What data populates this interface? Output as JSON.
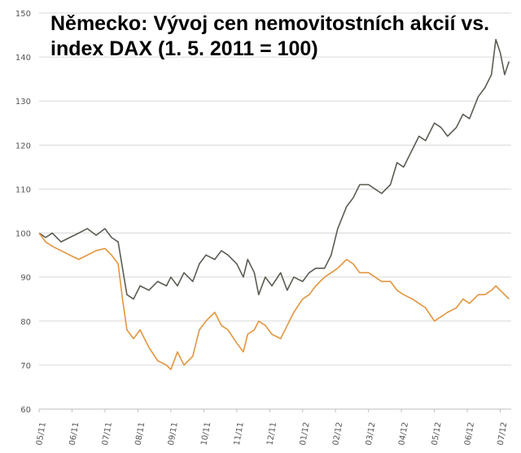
{
  "chart_data": {
    "type": "line",
    "title": "Německo: Vývoj cen nemovitostních akcií vs. index DAX (1. 5. 2011 = 100)",
    "xlabel": "",
    "ylabel": "",
    "ylim": [
      60,
      150
    ],
    "y_ticks": [
      "60",
      "70",
      "80",
      "90",
      "100",
      "110",
      "120",
      "130",
      "140",
      "150"
    ],
    "x_ticks": [
      "05/11",
      "06/11",
      "07/11",
      "08/11",
      "09/11",
      "10/11",
      "11/11",
      "12/11",
      "01/12",
      "02/12",
      "03/12",
      "04/12",
      "05/12",
      "06/12",
      "07/12"
    ],
    "grid": "horizontal",
    "legend": "none",
    "series": [
      {
        "color": "#5a5d52",
        "points": [
          [
            0,
            100
          ],
          [
            0.3,
            99
          ],
          [
            0.6,
            100
          ],
          [
            1.0,
            98
          ],
          [
            1.4,
            99
          ],
          [
            1.8,
            100
          ],
          [
            2.2,
            101
          ],
          [
            2.6,
            99.5
          ],
          [
            3.0,
            101
          ],
          [
            3.3,
            99
          ],
          [
            3.6,
            98
          ],
          [
            3.8,
            92
          ],
          [
            4.0,
            86
          ],
          [
            4.3,
            85
          ],
          [
            4.6,
            88
          ],
          [
            5.0,
            87
          ],
          [
            5.4,
            89
          ],
          [
            5.8,
            88
          ],
          [
            6.0,
            90
          ],
          [
            6.3,
            88
          ],
          [
            6.6,
            91
          ],
          [
            7.0,
            89
          ],
          [
            7.3,
            93
          ],
          [
            7.6,
            95
          ],
          [
            8.0,
            94
          ],
          [
            8.3,
            96
          ],
          [
            8.6,
            95
          ],
          [
            9.0,
            93
          ],
          [
            9.3,
            90
          ],
          [
            9.5,
            94
          ],
          [
            9.8,
            91
          ],
          [
            10.0,
            86
          ],
          [
            10.3,
            90
          ],
          [
            10.6,
            88
          ],
          [
            11.0,
            91
          ],
          [
            11.3,
            87
          ],
          [
            11.6,
            90
          ],
          [
            12.0,
            89
          ],
          [
            12.3,
            91
          ],
          [
            12.6,
            92
          ],
          [
            13.0,
            92
          ],
          [
            13.3,
            95
          ],
          [
            13.6,
            101
          ],
          [
            14.0,
            106
          ],
          [
            14.3,
            108
          ],
          [
            14.6,
            111
          ],
          [
            15.0,
            111
          ],
          [
            15.3,
            110
          ],
          [
            15.6,
            109
          ],
          [
            16.0,
            111
          ],
          [
            16.3,
            116
          ],
          [
            16.6,
            115
          ],
          [
            17.0,
            119
          ],
          [
            17.3,
            122
          ],
          [
            17.6,
            121
          ],
          [
            18.0,
            125
          ],
          [
            18.3,
            124
          ],
          [
            18.6,
            122
          ],
          [
            19.0,
            124
          ],
          [
            19.3,
            127
          ],
          [
            19.6,
            126
          ],
          [
            20.0,
            131
          ],
          [
            20.3,
            133
          ],
          [
            20.6,
            136
          ],
          [
            20.8,
            144
          ],
          [
            21.0,
            141
          ],
          [
            21.2,
            136
          ],
          [
            21.4,
            139
          ]
        ]
      },
      {
        "color": "#e3953f",
        "points": [
          [
            0,
            100
          ],
          [
            0.3,
            98
          ],
          [
            0.6,
            97
          ],
          [
            1.0,
            96
          ],
          [
            1.4,
            95
          ],
          [
            1.8,
            94
          ],
          [
            2.2,
            95
          ],
          [
            2.6,
            96
          ],
          [
            3.0,
            96.5
          ],
          [
            3.3,
            95
          ],
          [
            3.6,
            93
          ],
          [
            3.8,
            85
          ],
          [
            4.0,
            78
          ],
          [
            4.3,
            76
          ],
          [
            4.6,
            78
          ],
          [
            5.0,
            74
          ],
          [
            5.4,
            71
          ],
          [
            5.8,
            70
          ],
          [
            6.0,
            69
          ],
          [
            6.3,
            73
          ],
          [
            6.6,
            70
          ],
          [
            7.0,
            72
          ],
          [
            7.3,
            78
          ],
          [
            7.6,
            80
          ],
          [
            8.0,
            82
          ],
          [
            8.3,
            79
          ],
          [
            8.6,
            78
          ],
          [
            9.0,
            75
          ],
          [
            9.3,
            73
          ],
          [
            9.5,
            77
          ],
          [
            9.8,
            78
          ],
          [
            10.0,
            80
          ],
          [
            10.3,
            79
          ],
          [
            10.6,
            77
          ],
          [
            11.0,
            76
          ],
          [
            11.3,
            79
          ],
          [
            11.6,
            82
          ],
          [
            12.0,
            85
          ],
          [
            12.3,
            86
          ],
          [
            12.6,
            88
          ],
          [
            13.0,
            90
          ],
          [
            13.3,
            91
          ],
          [
            13.6,
            92
          ],
          [
            14.0,
            94
          ],
          [
            14.3,
            93
          ],
          [
            14.6,
            91
          ],
          [
            15.0,
            91
          ],
          [
            15.3,
            90
          ],
          [
            15.6,
            89
          ],
          [
            16.0,
            89
          ],
          [
            16.3,
            87
          ],
          [
            16.6,
            86
          ],
          [
            17.0,
            85
          ],
          [
            17.3,
            84
          ],
          [
            17.6,
            83
          ],
          [
            18.0,
            80
          ],
          [
            18.3,
            81
          ],
          [
            18.6,
            82
          ],
          [
            19.0,
            83
          ],
          [
            19.3,
            85
          ],
          [
            19.6,
            84
          ],
          [
            20.0,
            86
          ],
          [
            20.3,
            86
          ],
          [
            20.6,
            87
          ],
          [
            20.8,
            88
          ],
          [
            21.0,
            87
          ],
          [
            21.2,
            86
          ],
          [
            21.4,
            85
          ]
        ]
      }
    ]
  }
}
